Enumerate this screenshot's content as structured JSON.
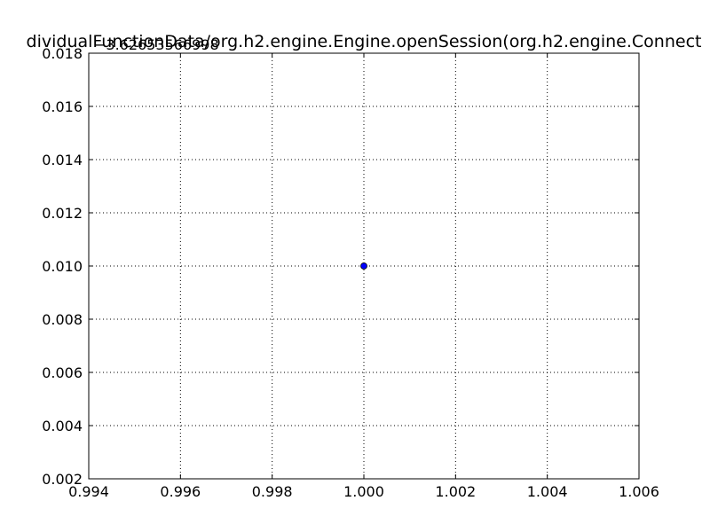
{
  "chart_data": {
    "type": "scatter",
    "title": "dividualFunctionData/org.h2.engine.Engine.openSession(org.h2.engine.Connect",
    "offset_text": "−3.62653566998",
    "xlabel": "",
    "ylabel": "",
    "xlim": [
      0.994,
      1.006
    ],
    "ylim": [
      0.002,
      0.018
    ],
    "x_ticks": [
      0.994,
      0.996,
      0.998,
      1.0,
      1.002,
      1.004,
      1.006
    ],
    "x_tick_labels": [
      "0.994",
      "0.996",
      "0.998",
      "1.000",
      "1.002",
      "1.004",
      "1.006"
    ],
    "y_ticks": [
      0.002,
      0.004,
      0.006,
      0.008,
      0.01,
      0.012,
      0.014,
      0.016,
      0.018
    ],
    "y_tick_labels": [
      "0.002",
      "0.004",
      "0.006",
      "0.008",
      "0.010",
      "0.012",
      "0.014",
      "0.016",
      "0.018"
    ],
    "grid": true,
    "points": [
      {
        "x": 1.0,
        "y": 0.01
      }
    ],
    "marker_color": "#0000ff",
    "marker_edge_color": "#000000",
    "grid_color": "#000000"
  }
}
